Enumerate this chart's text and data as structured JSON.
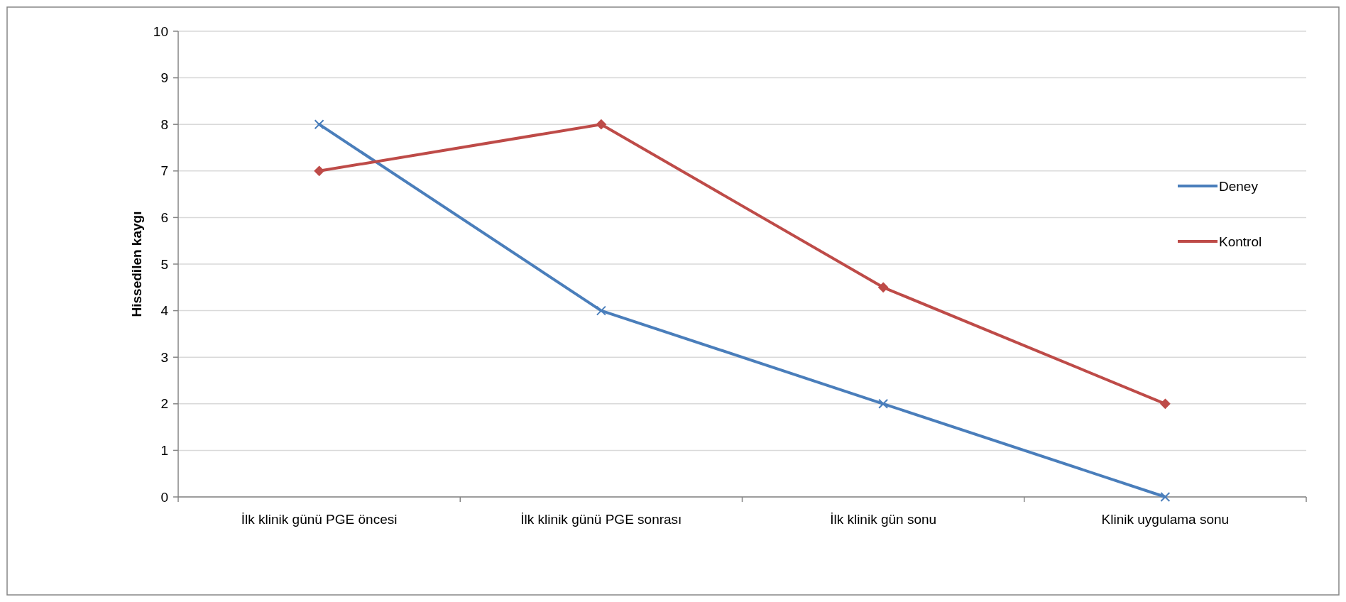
{
  "chart_data": {
    "type": "line",
    "ylabel": "Hissedilen kaygı",
    "categories": [
      "İlk klinik günü PGE öncesi",
      "İlk klinik günü PGE sonrası",
      "İlk klinik gün sonu",
      "Klinik uygulama sonu"
    ],
    "series": [
      {
        "name": "Deney",
        "color": "#4a7ebb",
        "values": [
          8,
          4,
          2,
          0
        ],
        "marker": "cross"
      },
      {
        "name": "Kontrol",
        "color": "#be4b48",
        "values": [
          7,
          8,
          4.5,
          2
        ],
        "marker": "diamond"
      }
    ],
    "ylim": [
      0,
      10
    ],
    "yticks": [
      0,
      1,
      2,
      3,
      4,
      5,
      6,
      7,
      8,
      9,
      10
    ],
    "grid": "y",
    "legend": "right",
    "line_style": "solid"
  }
}
